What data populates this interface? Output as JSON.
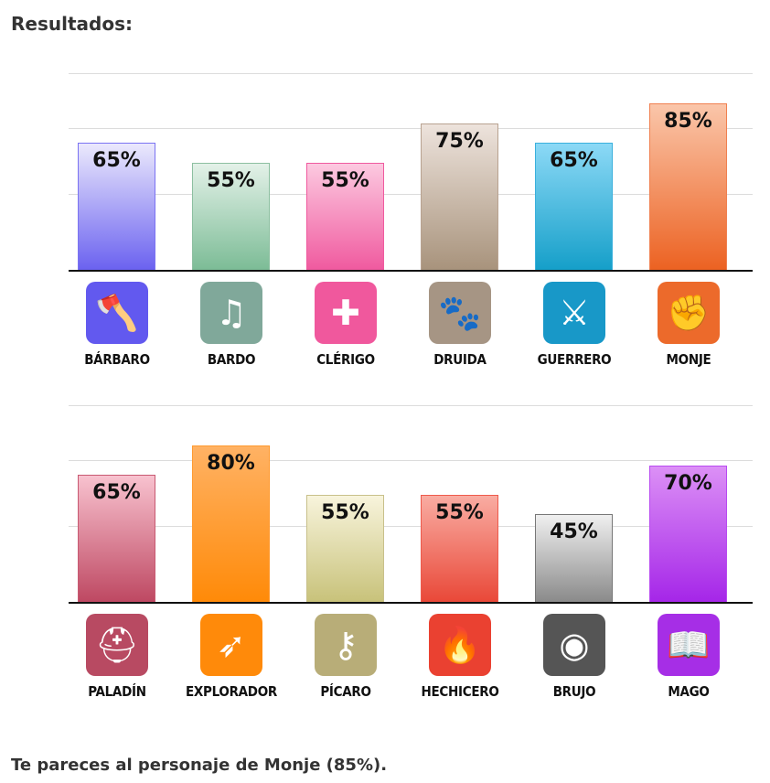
{
  "title": "Resultados:",
  "footer": "Te pareces al personaje de Monje (85%).",
  "chart_data": [
    {
      "type": "bar",
      "categories": [
        "BÁRBARO",
        "BARDO",
        "CLÉRIGO",
        "DRUIDA",
        "GUERRERO",
        "MONJE"
      ],
      "values": [
        65,
        55,
        55,
        75,
        65,
        85
      ],
      "labels": [
        "65%",
        "55%",
        "55%",
        "75%",
        "65%",
        "85%"
      ],
      "ylim": [
        0,
        100
      ],
      "grid": true,
      "colors": [
        {
          "top": "#ebe9fc",
          "bottom": "#6b62f0",
          "border": "#7b73f2",
          "icon": "#6259ef",
          "glyph": "axe-icon",
          "char": "🪓"
        },
        {
          "top": "#e3f1e8",
          "bottom": "#7cbc96",
          "border": "#8cbfa0",
          "icon": "#80a89a",
          "glyph": "lyre-icon",
          "char": "♫"
        },
        {
          "top": "#fcc9e0",
          "bottom": "#f05a9f",
          "border": "#f05a9f",
          "icon": "#f0589d",
          "glyph": "holy-cross-icon",
          "char": "✚"
        },
        {
          "top": "#ede3dc",
          "bottom": "#a8937c",
          "border": "#b8a290",
          "icon": "#a69584",
          "glyph": "paw-icon",
          "char": "🐾"
        },
        {
          "top": "#8cd9f6",
          "bottom": "#159fc9",
          "border": "#3ab0dc",
          "icon": "#1898c8",
          "glyph": "crossed-swords-icon",
          "char": "⚔"
        },
        {
          "top": "#fac6aa",
          "bottom": "#ec6222",
          "border": "#f08050",
          "icon": "#ec6a2b",
          "glyph": "fist-icon",
          "char": "✊"
        }
      ]
    },
    {
      "type": "bar",
      "categories": [
        "PALADÍN",
        "EXPLORADOR",
        "PÍCARO",
        "HECHICERO",
        "BRUJO",
        "MAGO"
      ],
      "values": [
        65,
        80,
        55,
        55,
        45,
        70
      ],
      "labels": [
        "65%",
        "80%",
        "55%",
        "55%",
        "45%",
        "70%"
      ],
      "ylim": [
        0,
        100
      ],
      "grid": true,
      "colors": [
        {
          "top": "#f8c2cf",
          "bottom": "#be4862",
          "border": "#c85a72",
          "icon": "#b84a62",
          "glyph": "helmet-icon",
          "char": "⛑"
        },
        {
          "top": "#ffb264",
          "bottom": "#ff8a08",
          "border": "#ff9a30",
          "icon": "#ff8a0a",
          "glyph": "bow-icon",
          "char": "➶"
        },
        {
          "top": "#f8f4dc",
          "bottom": "#c8c27a",
          "border": "#c8c08a",
          "icon": "#b8ad78",
          "glyph": "key-dagger-icon",
          "char": "⚷"
        },
        {
          "top": "#f9aca2",
          "bottom": "#e94838",
          "border": "#ee5a4c",
          "icon": "#ea4131",
          "glyph": "flame-icon",
          "char": "🔥"
        },
        {
          "top": "#f0f0f0",
          "bottom": "#8a8a8a",
          "border": "#777777",
          "icon": "#555555",
          "glyph": "eye-icon",
          "char": "◉"
        },
        {
          "top": "#dc90f6",
          "bottom": "#a526e8",
          "border": "#b84af0",
          "icon": "#a62ee6",
          "glyph": "spellbook-icon",
          "char": "📖"
        }
      ]
    }
  ]
}
